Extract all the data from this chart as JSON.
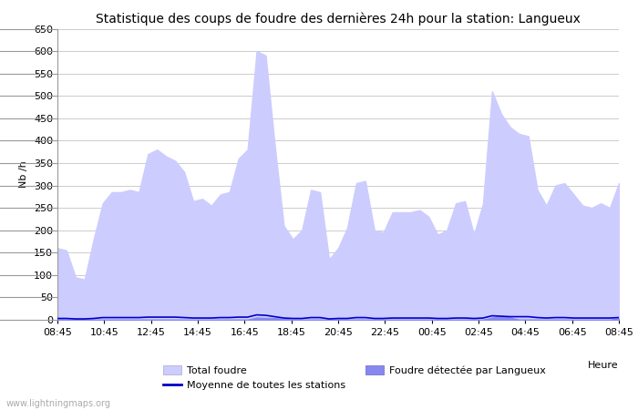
{
  "title": "Statistique des coups de foudre des dernières 24h pour la station: Langueux",
  "ylabel": "Nb /h",
  "xlabel_text": "Heure",
  "ylim": [
    0,
    650
  ],
  "yticks": [
    0,
    50,
    100,
    150,
    200,
    250,
    300,
    350,
    400,
    450,
    500,
    550,
    600,
    650
  ],
  "x_labels": [
    "08:45",
    "10:45",
    "12:45",
    "14:45",
    "16:45",
    "18:45",
    "20:45",
    "22:45",
    "00:45",
    "02:45",
    "04:45",
    "06:45",
    "08:45"
  ],
  "total_foudre_color": "#ccccff",
  "foudre_langueux_color": "#8888ee",
  "moyenne_color": "#0000cc",
  "background_color": "#ffffff",
  "grid_color": "#cccccc",
  "watermark": "www.lightningmaps.org",
  "title_fontsize": 10,
  "label_fontsize": 8,
  "tick_fontsize": 8,
  "total_foudre": [
    160,
    155,
    95,
    90,
    180,
    260,
    285,
    285,
    290,
    285,
    370,
    380,
    365,
    355,
    330,
    265,
    270,
    255,
    280,
    285,
    360,
    380,
    600,
    590,
    390,
    210,
    180,
    200,
    290,
    285,
    135,
    160,
    205,
    305,
    310,
    200,
    195,
    240,
    240,
    240,
    245,
    230,
    190,
    200,
    260,
    265,
    190,
    260,
    510,
    460,
    430,
    415,
    410,
    290,
    255,
    300,
    305,
    280,
    255,
    250,
    260,
    250,
    305
  ],
  "foudre_langueux": [
    0,
    0,
    0,
    0,
    0,
    0,
    0,
    0,
    0,
    0,
    0,
    0,
    0,
    0,
    0,
    0,
    0,
    0,
    0,
    0,
    0,
    0,
    5,
    4,
    4,
    2,
    0,
    0,
    0,
    0,
    0,
    0,
    0,
    0,
    0,
    0,
    0,
    0,
    0,
    0,
    0,
    0,
    0,
    0,
    0,
    0,
    0,
    0,
    5,
    7,
    5,
    0,
    0,
    0,
    0,
    0,
    0,
    0,
    0,
    0,
    0,
    0,
    3
  ],
  "moyenne": [
    3,
    3,
    2,
    2,
    3,
    5,
    5,
    5,
    5,
    5,
    6,
    6,
    6,
    6,
    5,
    4,
    4,
    4,
    5,
    5,
    6,
    6,
    11,
    10,
    7,
    4,
    3,
    3,
    5,
    5,
    2,
    3,
    3,
    5,
    5,
    3,
    3,
    4,
    4,
    4,
    4,
    4,
    3,
    3,
    4,
    4,
    3,
    4,
    9,
    8,
    7,
    7,
    7,
    5,
    4,
    5,
    5,
    4,
    4,
    4,
    4,
    4,
    5
  ]
}
